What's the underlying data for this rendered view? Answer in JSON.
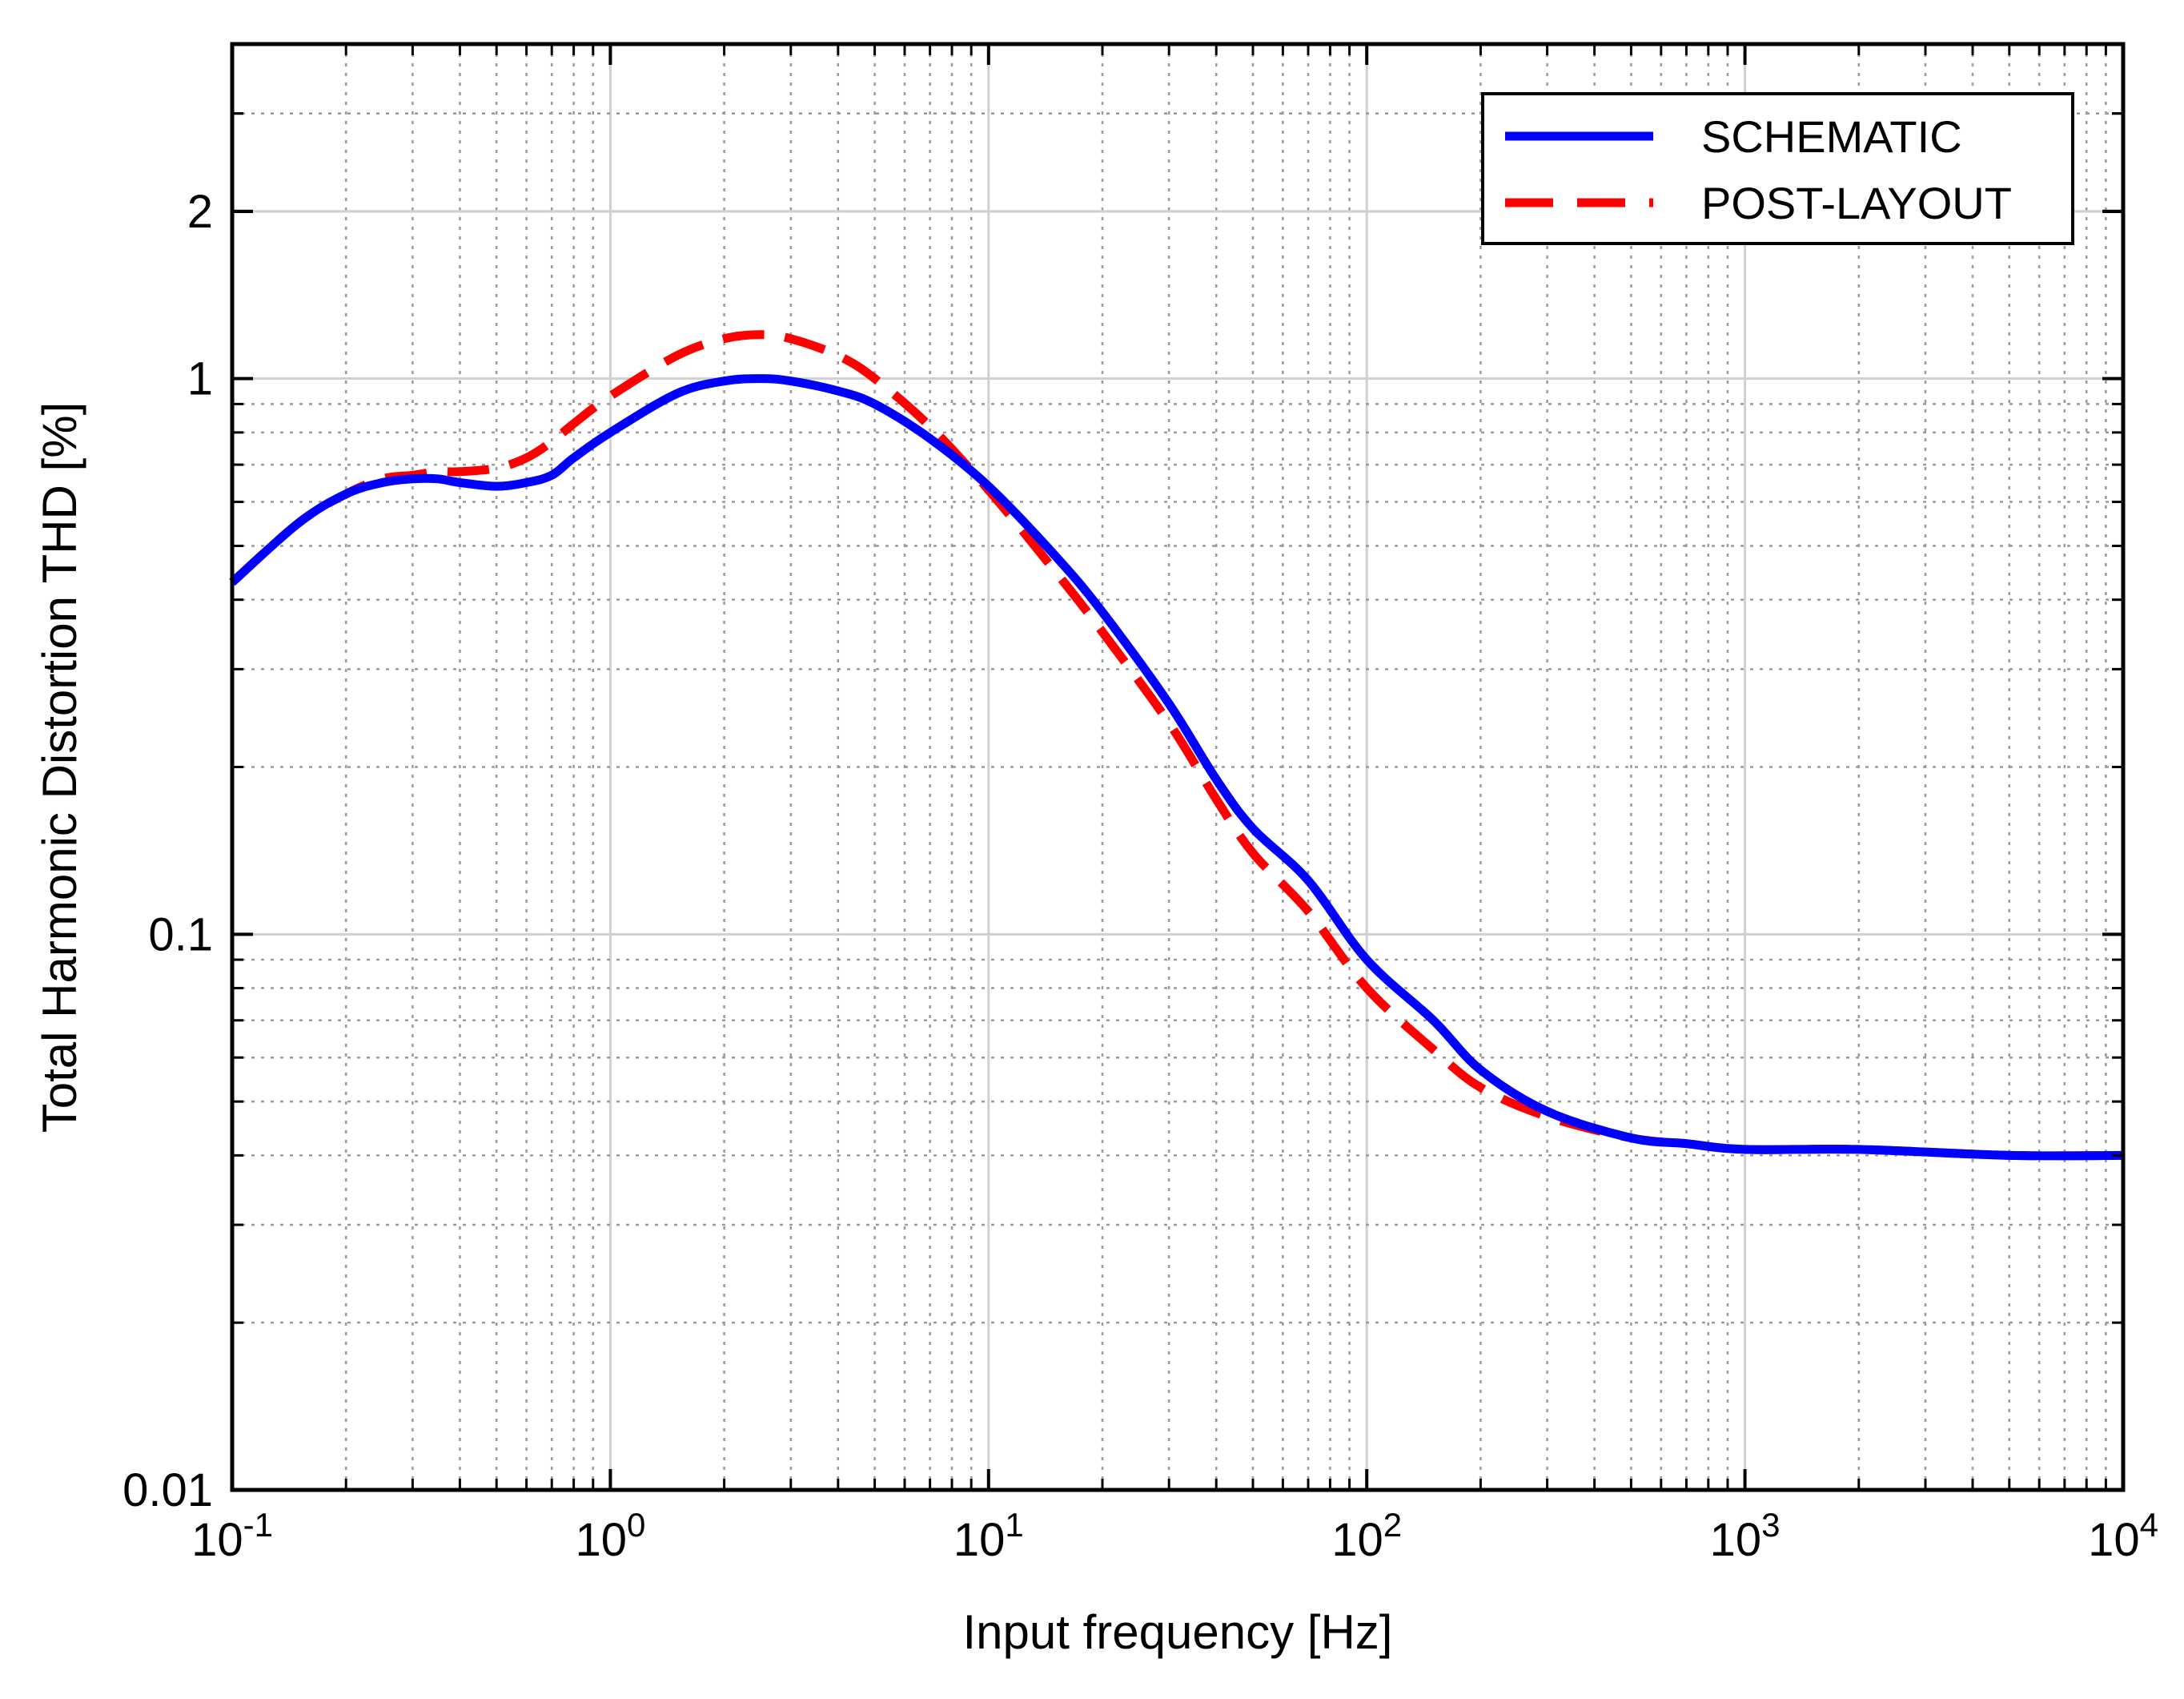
{
  "chart_data": {
    "type": "line",
    "title": "",
    "xlabel": "Input frequency [Hz]",
    "ylabel": "Total Harmonic Distortion THD [%]",
    "xscale": "log",
    "yscale": "log",
    "xlim": [
      0.1,
      10000
    ],
    "ylim": [
      0.01,
      4
    ],
    "grid": true,
    "x_ticks": [
      {
        "value": 0.1,
        "base": "10",
        "exp": "-1"
      },
      {
        "value": 1,
        "base": "10",
        "exp": "0"
      },
      {
        "value": 10,
        "base": "10",
        "exp": "1"
      },
      {
        "value": 100,
        "base": "10",
        "exp": "2"
      },
      {
        "value": 1000,
        "base": "10",
        "exp": "3"
      },
      {
        "value": 10000,
        "base": "10",
        "exp": "4"
      }
    ],
    "y_ticks": [
      {
        "value": 0.01,
        "label": "0.01"
      },
      {
        "value": 0.1,
        "label": "0.1"
      },
      {
        "value": 1,
        "label": "1"
      },
      {
        "value": 2,
        "label": "2"
      }
    ],
    "legend": {
      "position": "top-right"
    },
    "series": [
      {
        "name": "SCHEMATIC",
        "color": "#0000ff",
        "style": "solid",
        "x": [
          0.1,
          0.15,
          0.2,
          0.25,
          0.3,
          0.35,
          0.4,
          0.5,
          0.6,
          0.7,
          0.8,
          1.0,
          1.5,
          2.0,
          2.5,
          3.0,
          4.0,
          5.0,
          7.0,
          10,
          15,
          20,
          30,
          40,
          50,
          70,
          100,
          150,
          200,
          300,
          500,
          700,
          1000,
          2000,
          5000,
          10000
        ],
        "y": [
          0.43,
          0.55,
          0.62,
          0.65,
          0.66,
          0.66,
          0.65,
          0.64,
          0.65,
          0.67,
          0.72,
          0.8,
          0.94,
          0.99,
          1.0,
          0.99,
          0.95,
          0.9,
          0.78,
          0.64,
          0.48,
          0.38,
          0.26,
          0.19,
          0.155,
          0.125,
          0.09,
          0.07,
          0.057,
          0.048,
          0.043,
          0.042,
          0.041,
          0.041,
          0.04,
          0.04
        ]
      },
      {
        "name": "POST-LAYOUT",
        "color": "#ff0000",
        "style": "dashed",
        "x": [
          0.1,
          0.15,
          0.2,
          0.25,
          0.3,
          0.35,
          0.4,
          0.5,
          0.6,
          0.7,
          0.8,
          1.0,
          1.5,
          2.0,
          2.5,
          3.0,
          4.0,
          5.0,
          7.0,
          10,
          15,
          20,
          30,
          40,
          50,
          70,
          100,
          150,
          200,
          300,
          500,
          700,
          1000,
          2000,
          5000,
          10000
        ],
        "y": [
          0.43,
          0.55,
          0.62,
          0.66,
          0.67,
          0.68,
          0.68,
          0.69,
          0.72,
          0.77,
          0.83,
          0.93,
          1.1,
          1.18,
          1.2,
          1.18,
          1.1,
          1.0,
          0.82,
          0.63,
          0.45,
          0.35,
          0.24,
          0.175,
          0.14,
          0.11,
          0.08,
          0.062,
          0.053,
          0.047,
          0.043,
          0.042,
          0.041,
          0.041,
          0.04,
          0.04
        ]
      }
    ]
  }
}
